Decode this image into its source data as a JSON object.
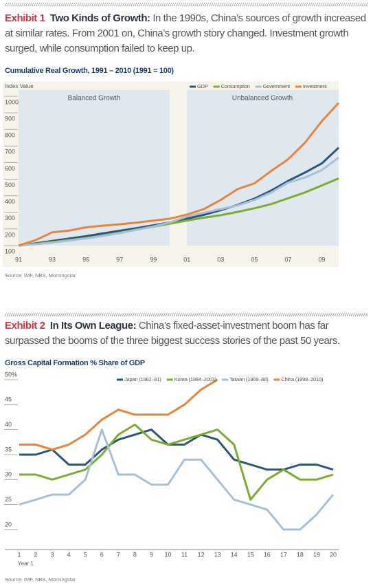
{
  "chart_data": [
    {
      "type": "line",
      "exhibit": "Exhibit 1",
      "headline": "Two Kinds of Growth:",
      "description": "In the 1990s, China’s sources of growth increased at similar rates. From 2001 on, China’s growth story changed. Investment growth surged, while consumption failed to keep up.",
      "title": "Cumulative Real Growth, 1991 – 2010 (1991 = 100)",
      "y_axis_label": "Index Value",
      "annotations": [
        "Balanced Growth",
        "Unbalanced Growth"
      ],
      "source": "Source: IMF, NBS, Morningstar",
      "x": [
        1991,
        1992,
        1993,
        1994,
        1995,
        1996,
        1997,
        1998,
        1999,
        2000,
        2001,
        2002,
        2003,
        2004,
        2005,
        2006,
        2007,
        2008,
        2009,
        2010
      ],
      "xlim": [
        1991,
        2010
      ],
      "xticks": [
        {
          "value": 1991,
          "label": "91"
        },
        {
          "value": 1993,
          "label": "93"
        },
        {
          "value": 1995,
          "label": "95"
        },
        {
          "value": 1997,
          "label": "97"
        },
        {
          "value": 1999,
          "label": "99"
        },
        {
          "value": 2001,
          "label": "01"
        },
        {
          "value": 2003,
          "label": "03"
        },
        {
          "value": 2005,
          "label": "05"
        },
        {
          "value": 2007,
          "label": "07"
        },
        {
          "value": 2009,
          "label": "09"
        }
      ],
      "ylim": [
        100,
        1000
      ],
      "yticks": [
        100,
        200,
        300,
        400,
        500,
        600,
        700,
        800,
        900,
        1000
      ],
      "series": [
        {
          "name": "GDP",
          "color": "#2b567c",
          "values": [
            100,
            113,
            128,
            142,
            157,
            173,
            189,
            205,
            222,
            240,
            262,
            285,
            313,
            345,
            383,
            432,
            490,
            540,
            595,
            690
          ]
        },
        {
          "name": "Consumption",
          "color": "#7cad2f",
          "values": [
            100,
            110,
            122,
            133,
            145,
            160,
            178,
            196,
            214,
            232,
            251,
            268,
            283,
            303,
            325,
            350,
            385,
            420,
            462,
            505
          ]
        },
        {
          "name": "Government",
          "color": "#a7c0d8",
          "values": [
            100,
            108,
            118,
            130,
            143,
            158,
            175,
            195,
            215,
            240,
            275,
            298,
            320,
            342,
            375,
            420,
            480,
            510,
            555,
            630
          ]
        },
        {
          "name": "Investment",
          "color": "#e9843b",
          "values": [
            100,
            132,
            180,
            190,
            210,
            220,
            228,
            238,
            250,
            262,
            287,
            320,
            375,
            440,
            475,
            550,
            620,
            720,
            850,
            960
          ]
        }
      ]
    },
    {
      "type": "line",
      "exhibit": "Exhibit 2",
      "headline": "In Its Own League:",
      "description": "China’s fixed-asset-investment boom has far surpassed the booms of the three biggest success stories of the past 50 years.",
      "title": "Gross Capital Formation % Share of GDP",
      "x_axis_label": "Year 1",
      "source": "Source: IMF, NBS, Morningstar",
      "x": [
        1,
        2,
        3,
        4,
        5,
        6,
        7,
        8,
        9,
        10,
        11,
        12,
        13,
        14,
        15,
        16,
        17,
        18,
        19,
        20
      ],
      "xlim": [
        1,
        20
      ],
      "xticks": [
        1,
        2,
        3,
        4,
        5,
        6,
        7,
        8,
        9,
        10,
        11,
        12,
        13,
        14,
        15,
        16,
        17,
        18,
        19,
        20
      ],
      "ylim": [
        16,
        50
      ],
      "yticks": [
        20,
        25,
        30,
        35,
        40,
        45,
        {
          "value": 50,
          "label": "50%"
        }
      ],
      "series": [
        {
          "name": "Japan (1962–81)",
          "color": "#2b567c",
          "values": [
            35,
            35,
            36,
            33,
            33,
            36,
            38,
            39,
            40,
            37,
            37,
            39,
            38,
            34,
            33,
            32,
            32,
            33,
            33,
            32
          ]
        },
        {
          "name": "Korea (1984–2003)",
          "color": "#7cad2f",
          "values": [
            31,
            31,
            30,
            31,
            32,
            35,
            39,
            41,
            38,
            37,
            38,
            39,
            40,
            37,
            26,
            30,
            32,
            30,
            30,
            31
          ]
        },
        {
          "name": "Taiwan (1969–88)",
          "color": "#a7c0d8",
          "values": [
            25,
            26,
            27,
            27,
            30,
            40,
            31,
            31,
            29,
            29,
            34,
            34,
            30,
            26,
            25,
            24,
            20,
            20,
            23,
            27
          ]
        },
        {
          "name": "China (1998–2010)",
          "color": "#e9843b",
          "values": [
            37,
            37,
            36,
            37,
            39,
            42,
            44,
            43,
            43,
            43,
            45,
            48,
            50,
            null,
            null,
            null,
            null,
            null,
            null,
            null
          ]
        }
      ]
    }
  ]
}
